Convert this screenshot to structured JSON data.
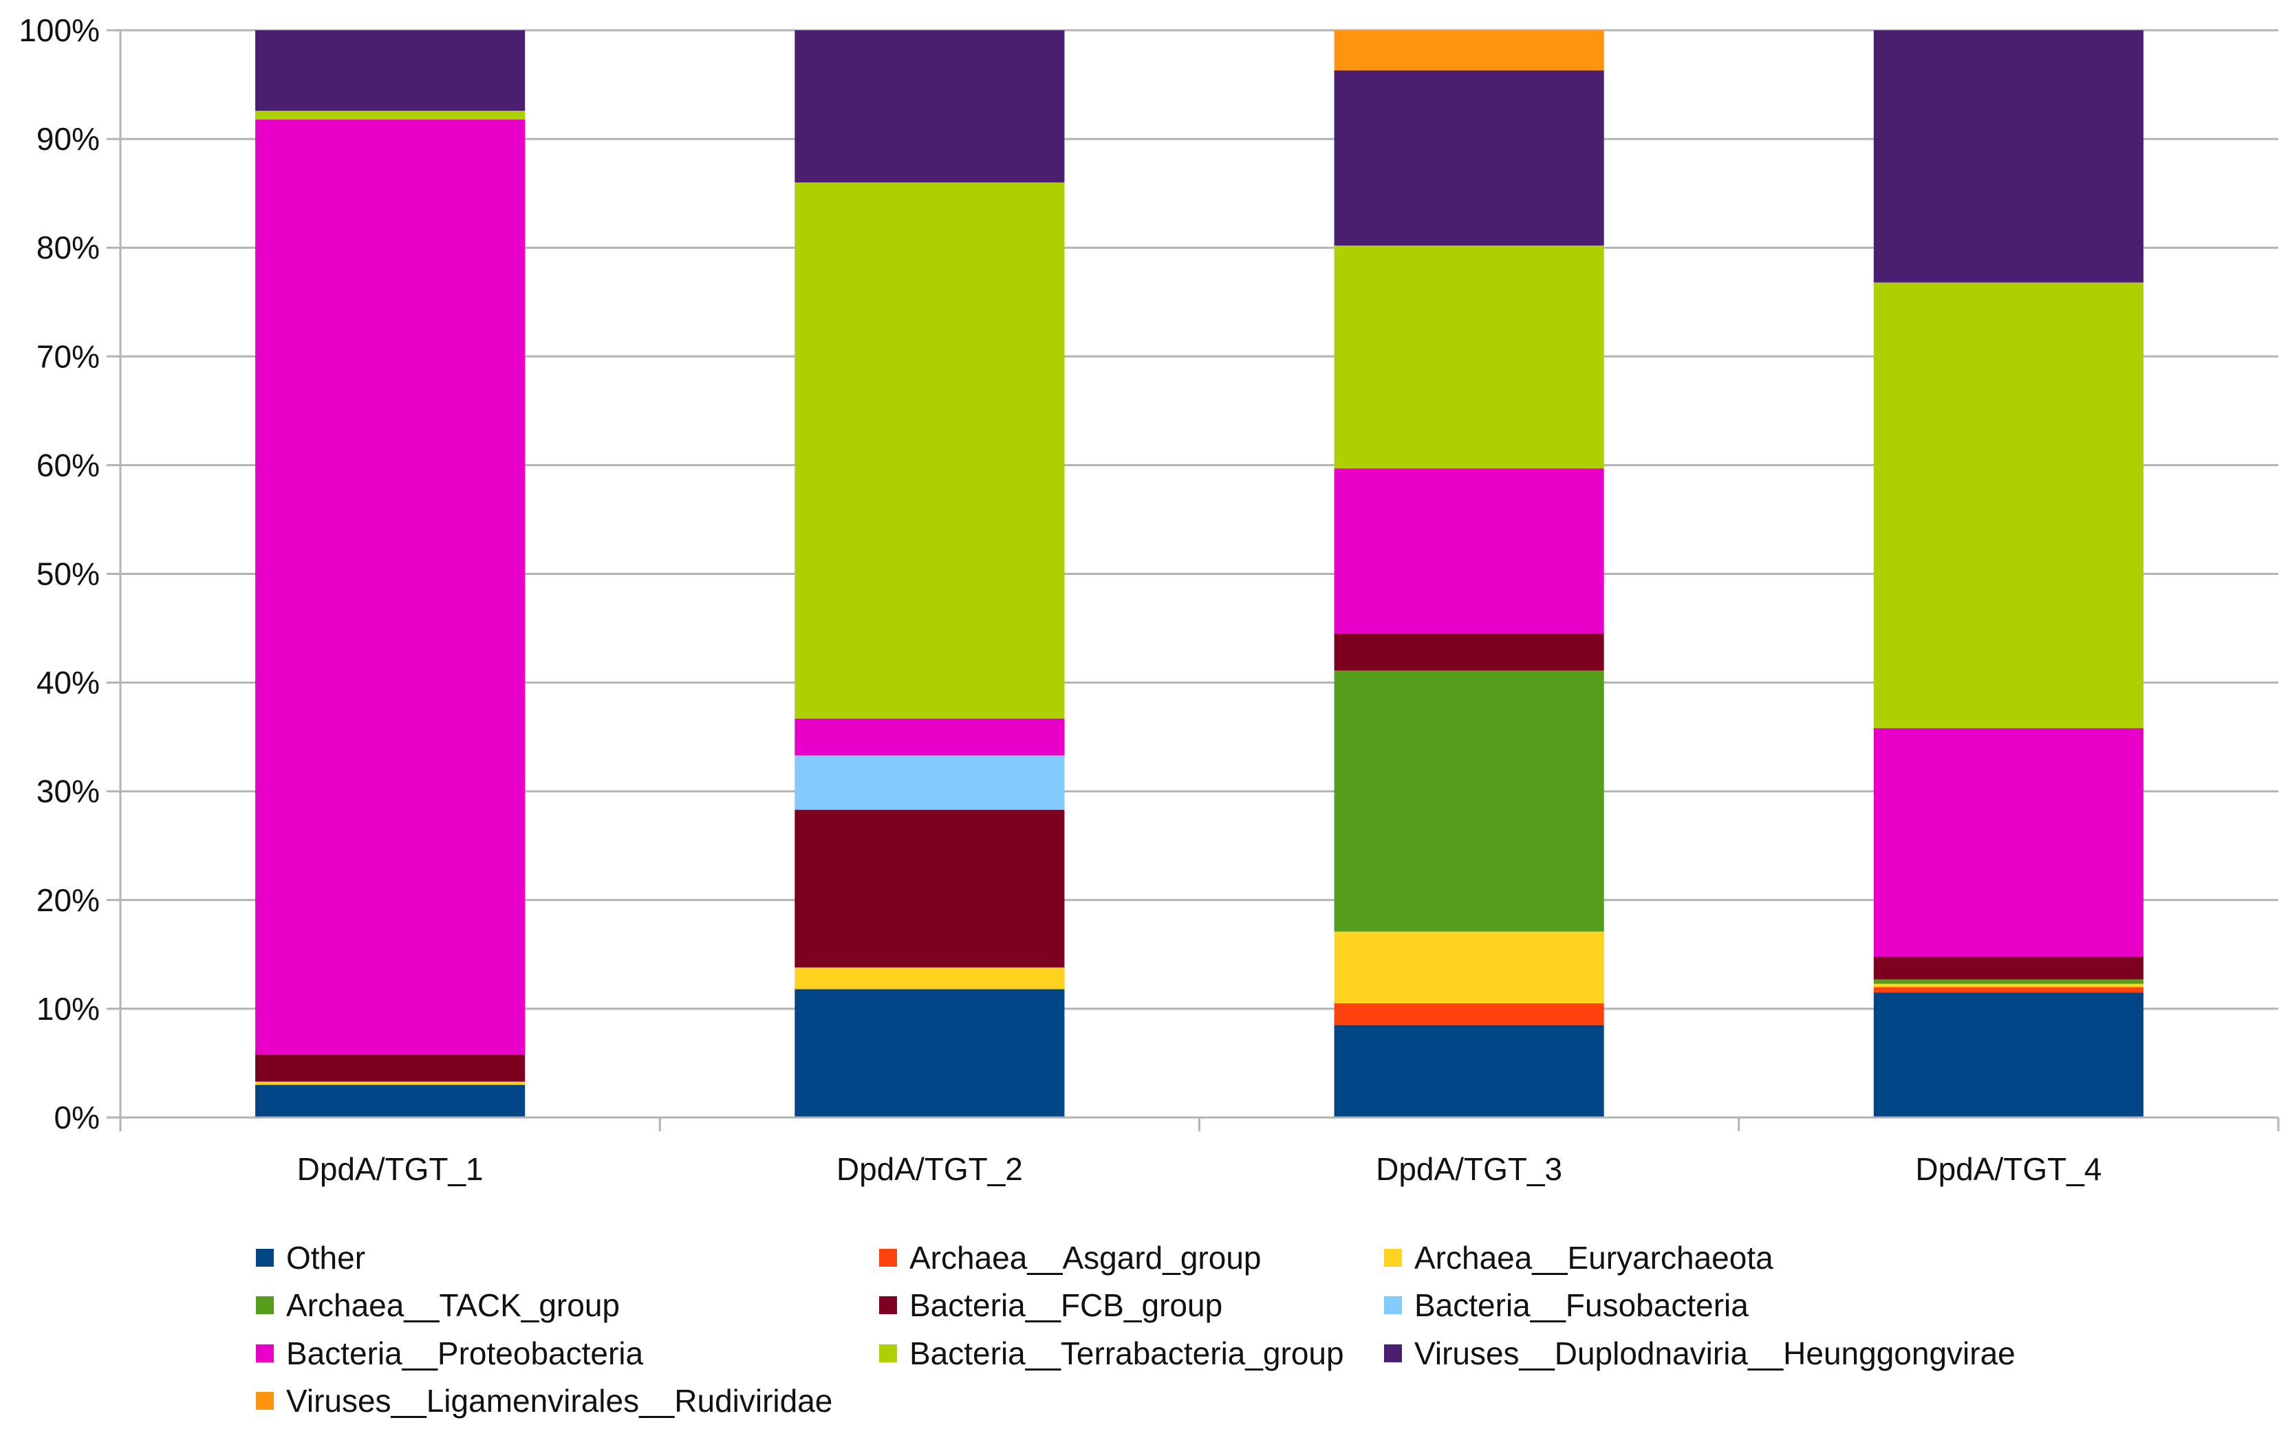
{
  "chart_data": {
    "type": "bar",
    "stacked": true,
    "percent_stacked": true,
    "categories": [
      "DpdA/TGT_1",
      "DpdA/TGT_2",
      "DpdA/TGT_3",
      "DpdA/TGT_4"
    ],
    "y_ticks": [
      "0%",
      "10%",
      "20%",
      "30%",
      "40%",
      "50%",
      "60%",
      "70%",
      "80%",
      "90%",
      "100%"
    ],
    "ylim": [
      0,
      100
    ],
    "grid": true,
    "legend_position": "bottom",
    "series": [
      {
        "name": "Other",
        "color": "#004586",
        "values": [
          3.0,
          11.8,
          8.5,
          11.5
        ]
      },
      {
        "name": "Archaea__Asgard_group",
        "color": "#ff420e",
        "values": [
          0.0,
          0.0,
          2.0,
          0.5
        ]
      },
      {
        "name": "Archaea__Euryarchaeota",
        "color": "#ffd320",
        "values": [
          0.3,
          2.0,
          6.6,
          0.3
        ]
      },
      {
        "name": "Archaea__TACK_group",
        "color": "#579d1c",
        "values": [
          0.0,
          0.0,
          24.0,
          0.4
        ]
      },
      {
        "name": "Bacteria__FCB_group",
        "color": "#7e0021",
        "values": [
          2.5,
          14.5,
          3.4,
          2.1
        ]
      },
      {
        "name": "Bacteria__Fusobacteria",
        "color": "#83caff",
        "values": [
          0.0,
          5.0,
          0.0,
          0.0
        ]
      },
      {
        "name": "Bacteria__Proteobacteria",
        "color": "#e800c8",
        "values": [
          86.0,
          3.4,
          15.2,
          21.0
        ]
      },
      {
        "name": "Bacteria__Terrabacteria_group",
        "color": "#aecf00",
        "values": [
          0.8,
          49.3,
          20.5,
          41.0
        ]
      },
      {
        "name": "Viruses__Duplodnaviria__Heunggongvirae",
        "color": "#4b1f6f",
        "values": [
          7.4,
          14.0,
          16.1,
          23.2
        ]
      },
      {
        "name": "Viruses__Ligamenvirales__Rudiviridae",
        "color": "#ff950e",
        "values": [
          0.0,
          0.0,
          3.7,
          0.0
        ]
      }
    ]
  }
}
